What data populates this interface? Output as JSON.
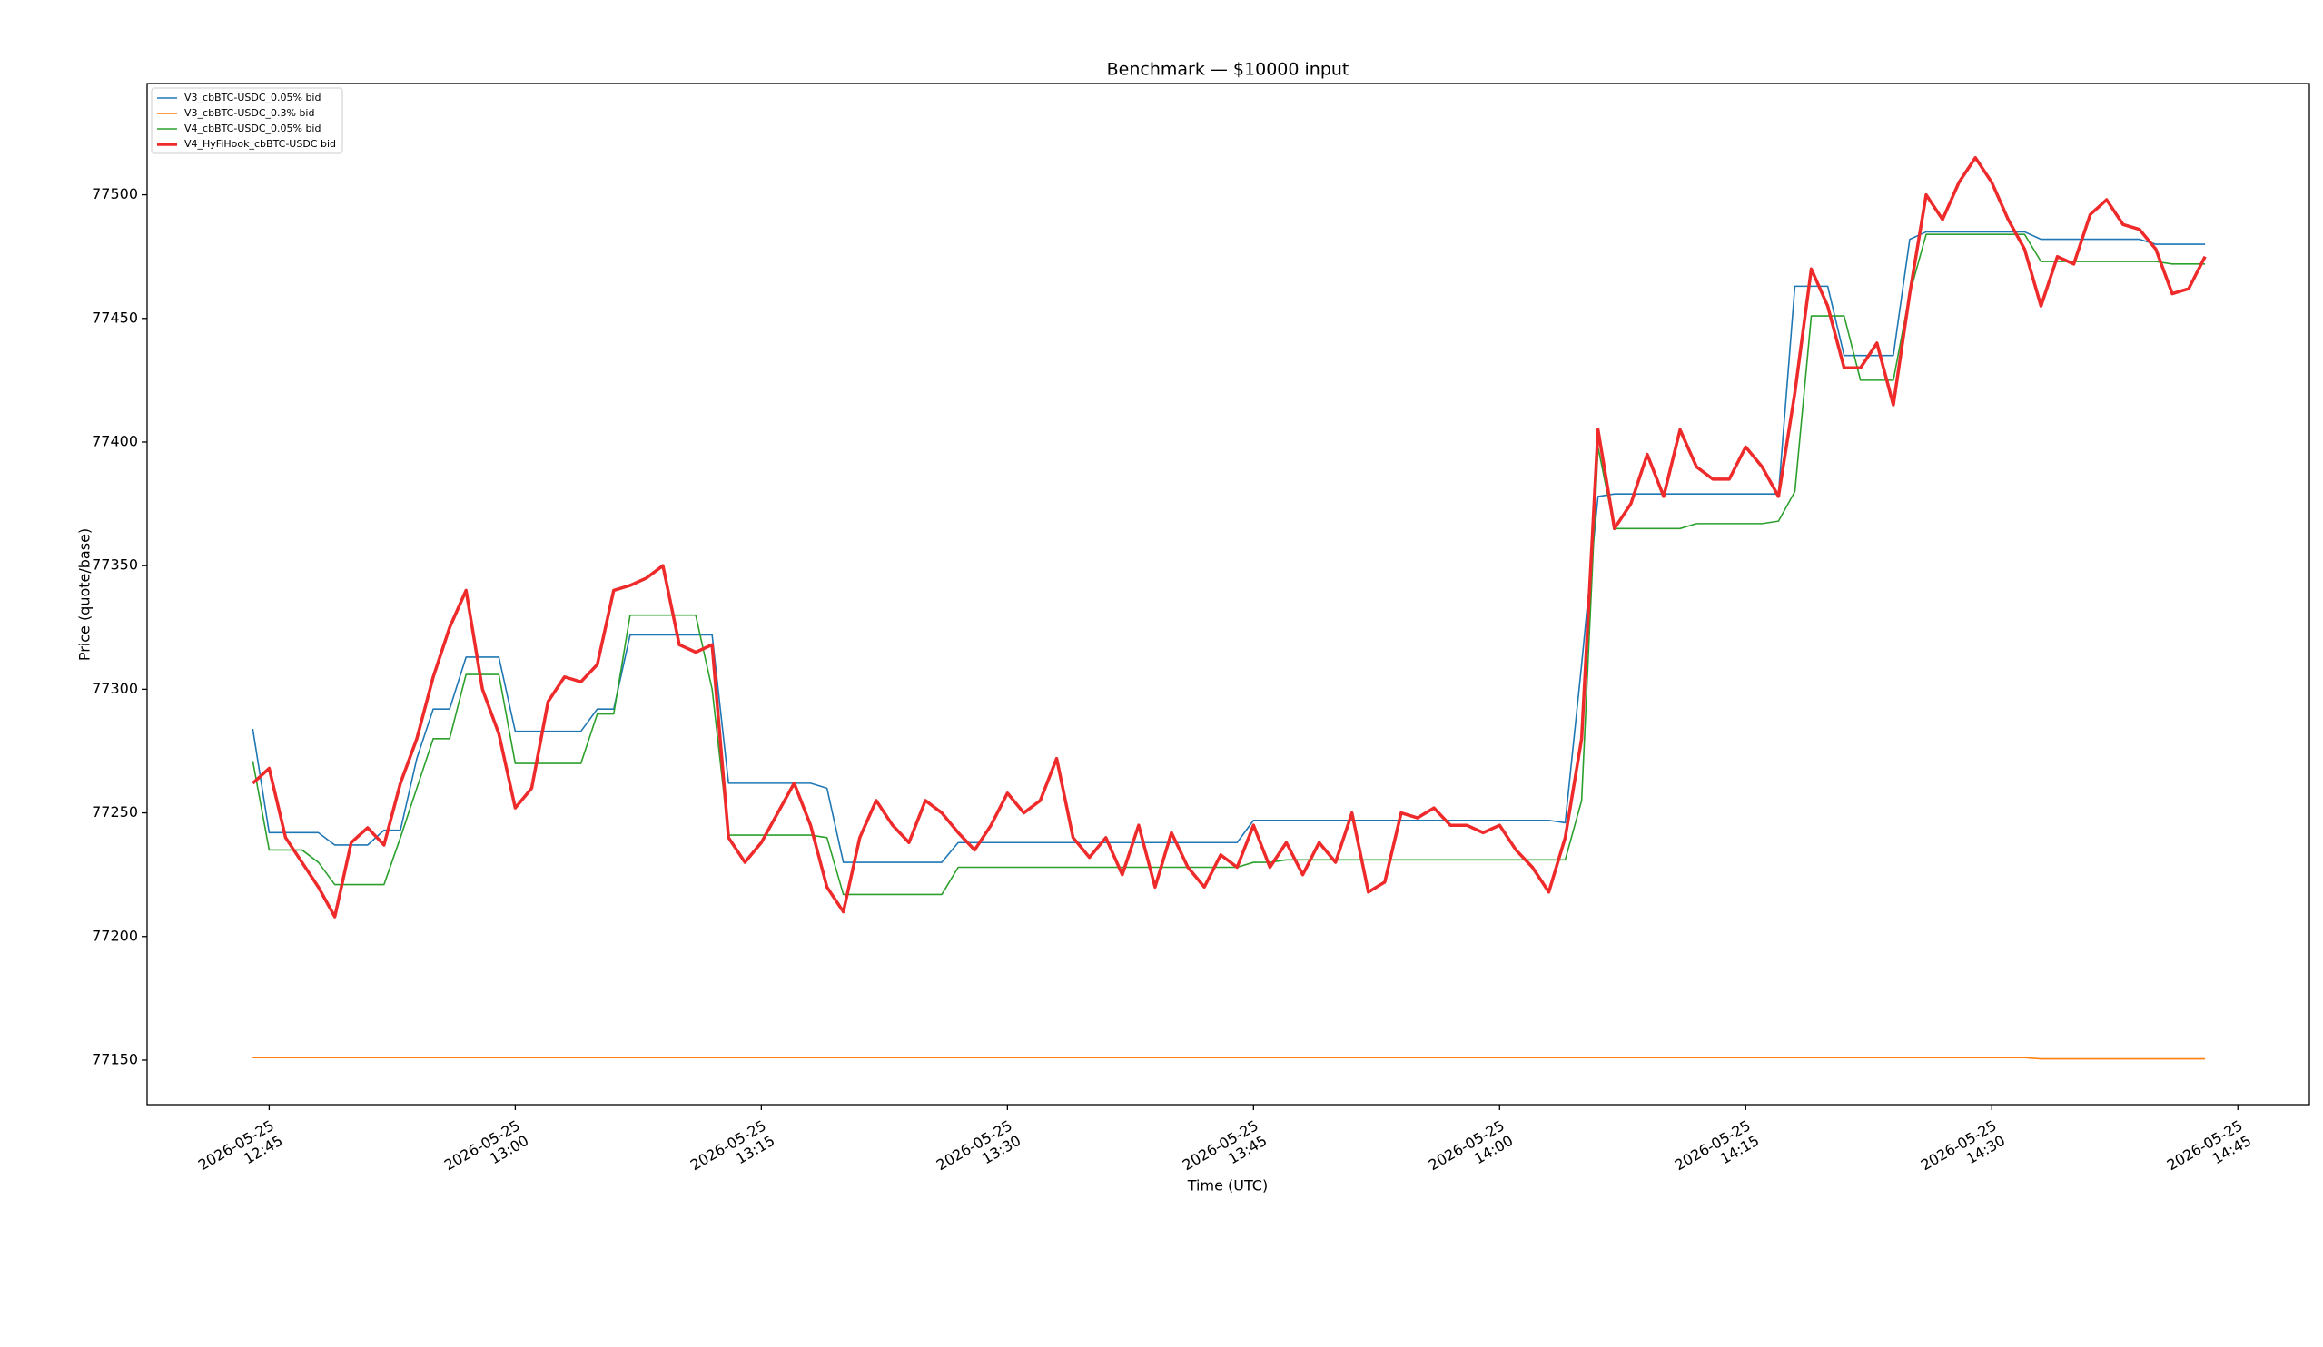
{
  "chart_data": {
    "type": "line",
    "title": "Benchmark — $10000 input",
    "x_label": "Time (UTC)",
    "y_label": "Price (quote/base)",
    "legend": "upper left",
    "grid": false,
    "xlim": [
      757.56,
      889.36
    ],
    "xticks": [
      {
        "value": 765,
        "label": "2026-05-25 12:45"
      },
      {
        "value": 780,
        "label": "2026-05-25 13:00"
      },
      {
        "value": 795,
        "label": "2026-05-25 13:15"
      },
      {
        "value": 810,
        "label": "2026-05-25 13:30"
      },
      {
        "value": 825,
        "label": "2026-05-25 13:45"
      },
      {
        "value": 840,
        "label": "2026-05-25 14:00"
      },
      {
        "value": 855,
        "label": "2026-05-25 14:15"
      },
      {
        "value": 870,
        "label": "2026-05-25 14:30"
      },
      {
        "value": 885,
        "label": "2026-05-25 14:45"
      }
    ],
    "ylim": [
      77132,
      77545
    ],
    "yticks": [
      77150,
      77200,
      77250,
      77300,
      77350,
      77400,
      77450,
      77500
    ],
    "x": [
      764,
      765,
      766,
      767,
      768,
      769,
      770,
      771,
      772,
      773,
      774,
      775,
      776,
      777,
      778,
      779,
      780,
      781,
      782,
      783,
      784,
      785,
      786,
      787,
      788,
      789,
      790,
      791,
      792,
      793,
      794,
      795,
      796,
      797,
      798,
      799,
      800,
      801,
      802,
      803,
      804,
      805,
      806,
      807,
      808,
      809,
      810,
      811,
      812,
      813,
      814,
      815,
      816,
      817,
      818,
      819,
      820,
      821,
      822,
      823,
      824,
      825,
      826,
      827,
      828,
      829,
      830,
      831,
      832,
      833,
      834,
      835,
      836,
      837,
      838,
      839,
      840,
      841,
      842,
      843,
      844,
      845,
      846,
      847,
      848,
      849,
      850,
      851,
      852,
      853,
      854,
      855,
      856,
      857,
      858,
      859,
      860,
      861,
      862,
      863,
      864,
      865,
      866,
      867,
      868,
      869,
      870,
      871,
      872,
      873,
      874,
      875,
      876,
      877,
      878,
      879,
      880,
      881,
      882,
      883
    ],
    "series": [
      {
        "name": "V3_cbBTC-USDC_0.05% bid",
        "color": "#1f77b4",
        "width": 1.6,
        "values": [
          77284,
          77242,
          77242,
          77242,
          77242,
          77237,
          77237,
          77237,
          77243,
          77243,
          77272,
          77292,
          77292,
          77313,
          77313,
          77313,
          77283,
          77283,
          77283,
          77283,
          77283,
          77292,
          77292,
          77322,
          77322,
          77322,
          77322,
          77322,
          77322,
          77262,
          77262,
          77262,
          77262,
          77262,
          77262,
          77260,
          77230,
          77230,
          77230,
          77230,
          77230,
          77230,
          77230,
          77238,
          77238,
          77238,
          77238,
          77238,
          77238,
          77238,
          77238,
          77238,
          77238,
          77238,
          77238,
          77238,
          77238,
          77238,
          77238,
          77238,
          77238,
          77247,
          77247,
          77247,
          77247,
          77247,
          77247,
          77247,
          77247,
          77247,
          77247,
          77247,
          77247,
          77247,
          77247,
          77247,
          77247,
          77247,
          77247,
          77247,
          77246,
          77310,
          77378,
          77379,
          77379,
          77379,
          77379,
          77379,
          77379,
          77379,
          77379,
          77379,
          77379,
          77379,
          77463,
          77463,
          77463,
          77435,
          77435,
          77435,
          77435,
          77482,
          77485,
          77485,
          77485,
          77485,
          77485,
          77485,
          77485,
          77482,
          77482,
          77482,
          77482,
          77482,
          77482,
          77482,
          77480,
          77480,
          77480,
          77480
        ]
      },
      {
        "name": "V3_cbBTC-USDC_0.3% bid",
        "color": "#ff7f0e",
        "width": 1.6,
        "values": [
          77151,
          77151,
          77151,
          77151,
          77151,
          77151,
          77151,
          77151,
          77151,
          77151,
          77151,
          77151,
          77151,
          77151,
          77151,
          77151,
          77151,
          77151,
          77151,
          77151,
          77151,
          77151,
          77151,
          77151,
          77151,
          77151,
          77151,
          77151,
          77151,
          77151,
          77151,
          77151,
          77151,
          77151,
          77151,
          77151,
          77151,
          77151,
          77151,
          77151,
          77151,
          77151,
          77151,
          77151,
          77151,
          77151,
          77151,
          77151,
          77151,
          77151,
          77151,
          77151,
          77151,
          77151,
          77151,
          77151,
          77151,
          77151,
          77151,
          77151,
          77151,
          77151,
          77151,
          77151,
          77151,
          77151,
          77151,
          77151,
          77151,
          77151,
          77151,
          77151,
          77151,
          77151,
          77151,
          77151,
          77151,
          77151,
          77151,
          77151,
          77151,
          77151,
          77151,
          77151,
          77151,
          77151,
          77151,
          77151,
          77151,
          77151,
          77151,
          77151,
          77151,
          77151,
          77151,
          77151,
          77151,
          77151,
          77151,
          77151,
          77151,
          77151,
          77151,
          77151,
          77151,
          77151,
          77151,
          77151,
          77151,
          77150.5,
          77150.5,
          77150.5,
          77150.5,
          77150.5,
          77150.5,
          77150.5,
          77150.5,
          77150.5,
          77150.5,
          77150.5
        ]
      },
      {
        "name": "V4_cbBTC-USDC_0.05% bid",
        "color": "#2ca02c",
        "width": 1.6,
        "values": [
          77271,
          77235,
          77235,
          77235,
          77230,
          77221,
          77221,
          77221,
          77221,
          77240,
          77260,
          77280,
          77280,
          77306,
          77306,
          77306,
          77270,
          77270,
          77270,
          77270,
          77270,
          77290,
          77290,
          77330,
          77330,
          77330,
          77330,
          77330,
          77300,
          77241,
          77241,
          77241,
          77241,
          77241,
          77241,
          77240,
          77217,
          77217,
          77217,
          77217,
          77217,
          77217,
          77217,
          77228,
          77228,
          77228,
          77228,
          77228,
          77228,
          77228,
          77228,
          77228,
          77228,
          77228,
          77228,
          77228,
          77228,
          77228,
          77228,
          77228,
          77228,
          77230,
          77230,
          77231,
          77231,
          77231,
          77231,
          77231,
          77231,
          77231,
          77231,
          77231,
          77231,
          77231,
          77231,
          77231,
          77231,
          77231,
          77231,
          77231,
          77231,
          77255,
          77398,
          77365,
          77365,
          77365,
          77365,
          77365,
          77367,
          77367,
          77367,
          77367,
          77367,
          77368,
          77380,
          77451,
          77451,
          77451,
          77425,
          77425,
          77425,
          77460,
          77484,
          77484,
          77484,
          77484,
          77484,
          77484,
          77484,
          77473,
          77473,
          77473,
          77473,
          77473,
          77473,
          77473,
          77473,
          77472,
          77472,
          77472
        ]
      },
      {
        "name": "V4_HyFiHook_cbBTC-USDC bid",
        "color": "#ee2a2a",
        "width": 3.5,
        "values": [
          77262,
          77268,
          77240,
          77230,
          77220,
          77208,
          77238,
          77244,
          77237,
          77262,
          77280,
          77305,
          77325,
          77340,
          77300,
          77282,
          77252,
          77260,
          77295,
          77305,
          77303,
          77310,
          77340,
          77342,
          77345,
          77350,
          77318,
          77315,
          77318,
          77240,
          77230,
          77238,
          77250,
          77262,
          77245,
          77220,
          77210,
          77240,
          77255,
          77245,
          77238,
          77255,
          77250,
          77242,
          77235,
          77245,
          77258,
          77250,
          77255,
          77272,
          77240,
          77232,
          77240,
          77225,
          77245,
          77220,
          77242,
          77228,
          77220,
          77233,
          77228,
          77245,
          77228,
          77238,
          77225,
          77238,
          77230,
          77250,
          77218,
          77222,
          77250,
          77248,
          77252,
          77245,
          77245,
          77242,
          77245,
          77235,
          77228,
          77218,
          77240,
          77280,
          77405,
          77365,
          77375,
          77395,
          77378,
          77405,
          77390,
          77385,
          77385,
          77398,
          77390,
          77378,
          77420,
          77470,
          77455,
          77430,
          77430,
          77440,
          77415,
          77460,
          77500,
          77490,
          77505,
          77515,
          77505,
          77490,
          77478,
          77455,
          77475,
          77472,
          77492,
          77498,
          77488,
          77486,
          77478,
          77460,
          77462,
          77475
        ]
      }
    ]
  }
}
